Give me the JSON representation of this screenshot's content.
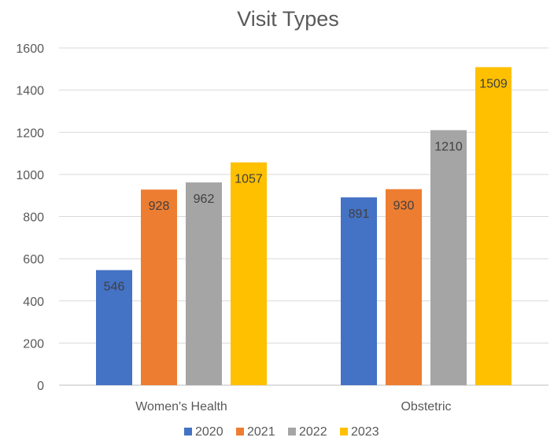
{
  "chart_data": {
    "type": "bar",
    "title": "Visit Types",
    "xlabel": "",
    "ylabel": "",
    "categories": [
      "Women's Health",
      "Obstetric"
    ],
    "series": [
      {
        "name": "2020",
        "color": "#4472c4",
        "values": [
          546,
          891
        ]
      },
      {
        "name": "2021",
        "color": "#ed7d31",
        "values": [
          928,
          930
        ]
      },
      {
        "name": "2022",
        "color": "#a5a5a5",
        "values": [
          962,
          1210
        ]
      },
      {
        "name": "2023",
        "color": "#ffc000",
        "values": [
          1057,
          1509
        ]
      }
    ],
    "ylim": [
      0,
      1600
    ],
    "yticks": [
      0,
      200,
      400,
      600,
      800,
      1000,
      1200,
      1400,
      1600
    ],
    "grid": true,
    "legend_position": "bottom",
    "data_labels": true
  }
}
